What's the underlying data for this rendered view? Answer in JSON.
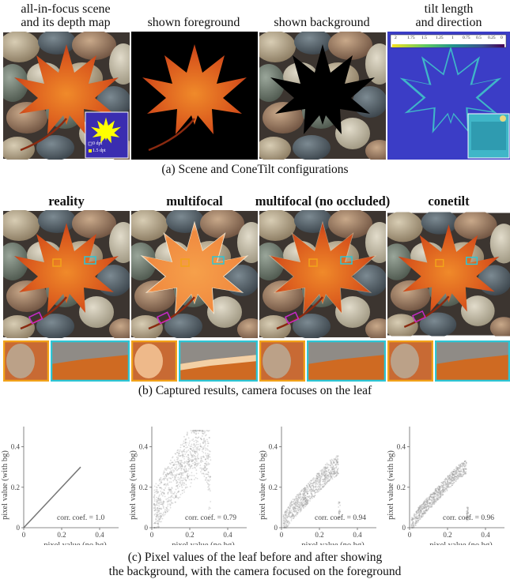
{
  "row_a": {
    "titles": [
      {
        "line1": "all-in-focus scene",
        "line2": "and its depth map"
      },
      {
        "line1": "shown foreground",
        "line2": ""
      },
      {
        "line1": "shown background",
        "line2": ""
      },
      {
        "line1": "tilt length",
        "line2": "and direction"
      }
    ],
    "depth_legend": {
      "near": "0 dpt",
      "far": "1.5 dpt"
    },
    "colorbar_ticks": [
      "2",
      "1.75",
      "1.5",
      "1.25",
      "1",
      "0.75",
      "0.5",
      "0.25",
      "0"
    ],
    "caption": "(a) Scene and ConeTilt configurations"
  },
  "row_b": {
    "titles": [
      "reality",
      "multifocal",
      "multifocal (no occluded)",
      "conetilt"
    ],
    "caption": "(b) Captured results, camera focuses on the leaf"
  },
  "row_c": {
    "caption_line1": "(c) Pixel values of the leaf before and after showing",
    "caption_line2": "the background, with the camera focused on the foreground"
  },
  "colors": {
    "inset_orange": "#f2a31a",
    "inset_cyan": "#2cc6d6",
    "inset_magenta": "#c72ac7",
    "depth_near": "#ffff00",
    "depth_far": "#3a2db0"
  },
  "chart_data": [
    {
      "type": "scatter",
      "xlabel": "pixel value (no bg)",
      "ylabel": "pixel value (with bg)",
      "xlim": [
        0,
        0.5
      ],
      "ylim": [
        0,
        0.5
      ],
      "xticks": [
        "0",
        "0.2",
        "0.4"
      ],
      "yticks": [
        "0",
        "0.2",
        "0.4"
      ],
      "annotation": "corr. coef. = 1.0",
      "x": [
        0,
        0.3
      ],
      "y": [
        0,
        0.3
      ]
    },
    {
      "type": "scatter",
      "xlabel": "pixel value (no bg)",
      "ylabel": "pixel value (with bg)",
      "xlim": [
        0,
        0.5
      ],
      "ylim": [
        0,
        0.5
      ],
      "xticks": [
        "0",
        "0.2",
        "0.4"
      ],
      "yticks": [
        "0",
        "0.2",
        "0.4"
      ],
      "annotation": "corr. coef. = 0.79",
      "x": [
        0.05,
        0.1,
        0.15,
        0.2,
        0.25,
        0.3
      ],
      "y": [
        0.15,
        0.22,
        0.3,
        0.38,
        0.44,
        0.3
      ]
    },
    {
      "type": "scatter",
      "xlabel": "pixel value (no bg)",
      "ylabel": "pixel value (with bg)",
      "xlim": [
        0,
        0.5
      ],
      "ylim": [
        0,
        0.5
      ],
      "xticks": [
        "0",
        "0.2",
        "0.4"
      ],
      "yticks": [
        "0",
        "0.2",
        "0.4"
      ],
      "annotation": "corr. coef. = 0.94",
      "x": [
        0.05,
        0.1,
        0.15,
        0.2,
        0.25,
        0.3
      ],
      "y": [
        0.08,
        0.13,
        0.18,
        0.23,
        0.28,
        0.31
      ]
    },
    {
      "type": "scatter",
      "xlabel": "pixel value (no bg)",
      "ylabel": "pixel value (with bg)",
      "xlim": [
        0,
        0.5
      ],
      "ylim": [
        0,
        0.5
      ],
      "xticks": [
        "0",
        "0.2",
        "0.4"
      ],
      "yticks": [
        "0",
        "0.2",
        "0.4"
      ],
      "annotation": "corr. coef. = 0.96",
      "x": [
        0.05,
        0.1,
        0.15,
        0.2,
        0.25,
        0.3
      ],
      "y": [
        0.07,
        0.12,
        0.17,
        0.22,
        0.27,
        0.3
      ]
    }
  ]
}
